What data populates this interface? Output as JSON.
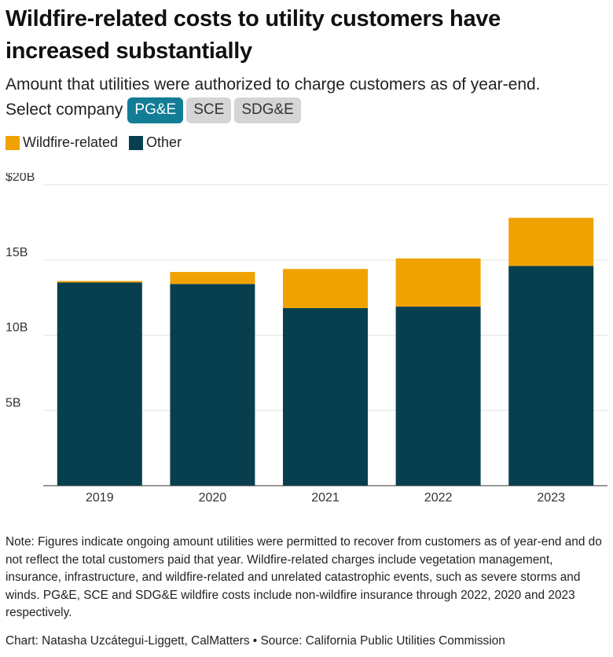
{
  "header": {
    "title": "Wildfire-related costs to utility customers have increased substantially",
    "subtitle": "Amount that utilities were authorized to charge customers as of year-end."
  },
  "selector": {
    "label": "Select company",
    "options": [
      "PG&E",
      "SCE",
      "SDG&E"
    ],
    "selected": "PG&E",
    "active_color": "#137d96",
    "inactive_color": "#d5d5d5"
  },
  "legend": [
    {
      "name": "Wildfire-related",
      "color": "#f0a202"
    },
    {
      "name": "Other",
      "color": "#073f4f"
    }
  ],
  "chart_data": {
    "type": "bar",
    "stacked": true,
    "categories": [
      "2019",
      "2020",
      "2021",
      "2022",
      "2023"
    ],
    "series": [
      {
        "name": "Other",
        "color": "#073f4f",
        "values": [
          13.5,
          13.4,
          11.8,
          11.9,
          14.6
        ]
      },
      {
        "name": "Wildfire-related",
        "color": "#f0a202",
        "values": [
          0.1,
          0.8,
          2.6,
          3.2,
          3.2
        ]
      }
    ],
    "ylim": [
      0,
      20
    ],
    "yticks": [
      0,
      5,
      10,
      15,
      20
    ],
    "ytick_labels": [
      "",
      "5B",
      "10B",
      "15B",
      "$20B"
    ],
    "grid": true,
    "legend_position": "top-left"
  },
  "footer": {
    "note": "Note: Figures indicate ongoing amount utilities were permitted to recover from customers as of year-end and do not reflect the total customers paid that year. Wildfire-related charges include vegetation management, insurance, infrastructure, and wildfire-related and unrelated catastrophic events, such as severe storms and winds. PG&E, SCE and SDG&E wildfire costs include non-wildfire insurance through 2022, 2020 and 2023 respectively.",
    "credit": "Chart: Natasha Uzcátegui-Liggett, CalMatters • Source: California Public Utilities Commission"
  }
}
